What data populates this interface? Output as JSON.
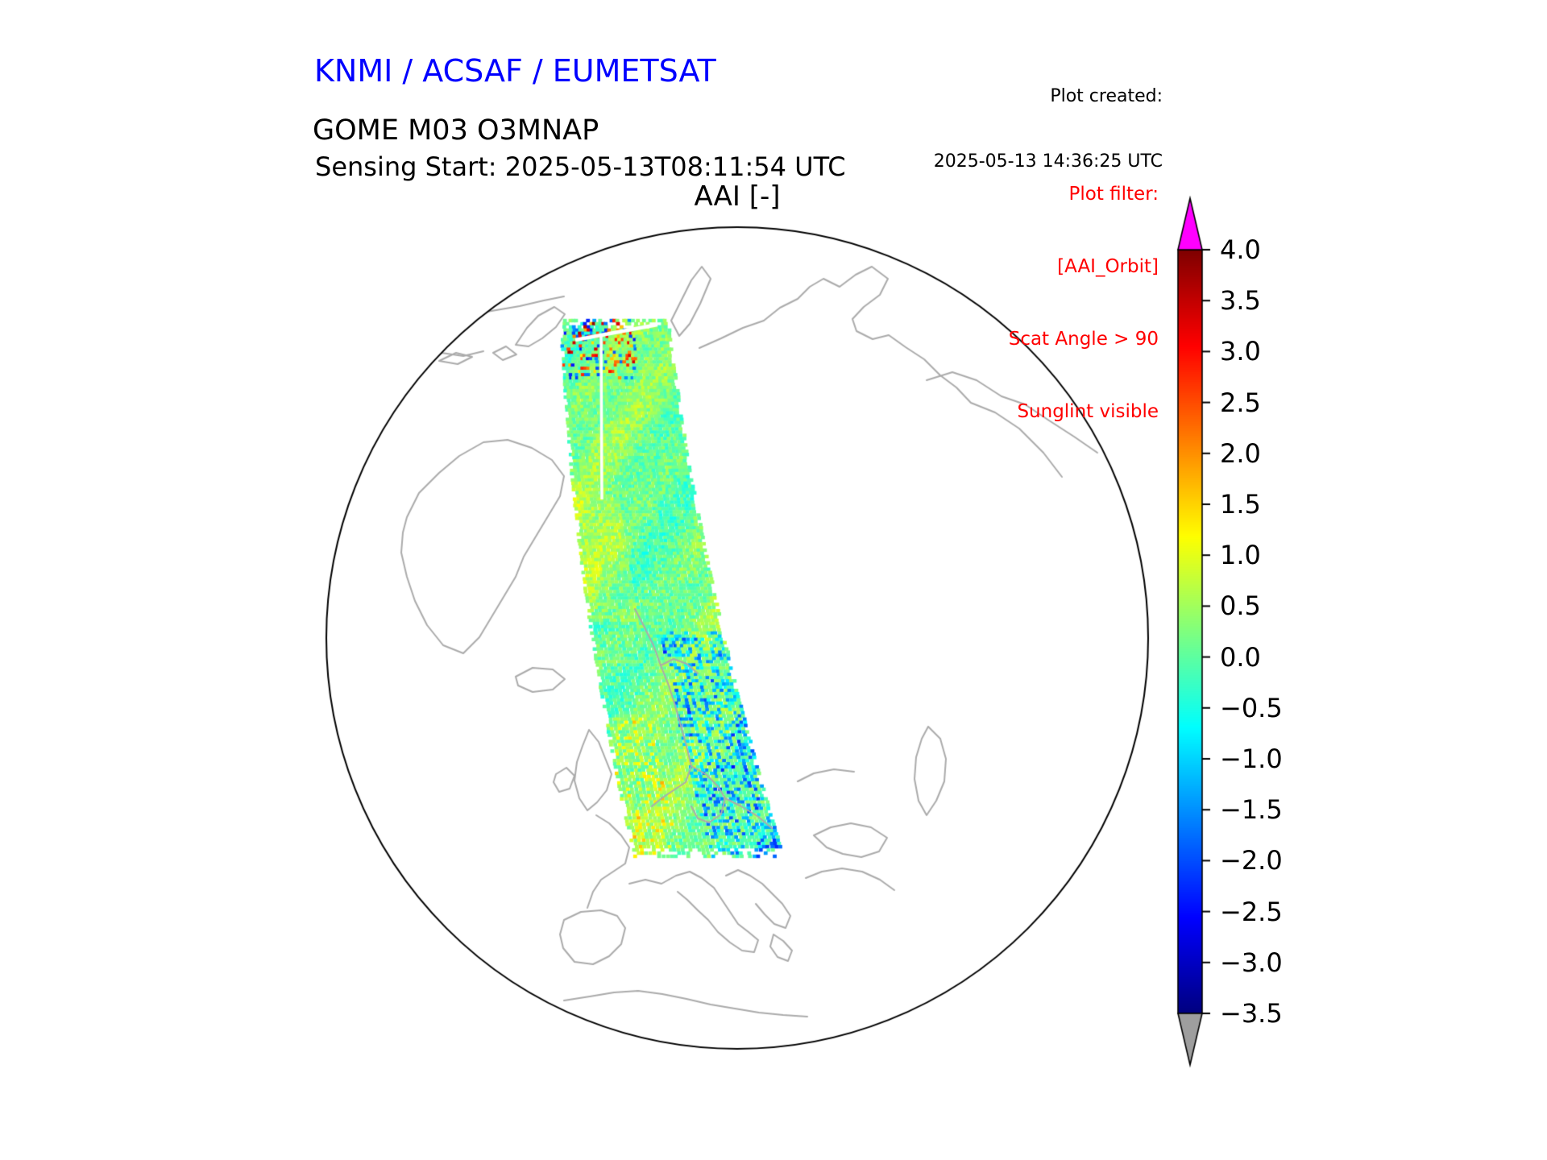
{
  "header": {
    "agency_title": "KNMI / ACSAF / EUMETSAT",
    "plot_created_label": "Plot created:",
    "plot_created_value": "2025-05-13 14:36:25 UTC",
    "product_title": "GOME M03 O3MNAP",
    "sensing_start": "Sensing Start: 2025-05-13T08:11:54 UTC"
  },
  "filter": {
    "title": "Plot filter:",
    "lines": [
      "[AAI_Orbit]",
      "Scat Angle > 90",
      "Sunglint visible"
    ]
  },
  "colors": {
    "header_blue": "#0000ff",
    "filter_red": "#ff0000",
    "coastline_gray": "#ababab",
    "globe_outline": "#000000"
  },
  "chart_data": {
    "type": "heatmap",
    "title": "AAI [-]",
    "projection": "north-polar orthographic globe, Europe at bottom, North Pole near center",
    "colormap": "jet",
    "colorbar": {
      "orientation": "vertical",
      "extend": "both",
      "vmin": -3.5,
      "vmax": 4.0,
      "ticks": [
        4.0,
        3.5,
        3.0,
        2.5,
        2.0,
        1.5,
        1.0,
        0.5,
        0.0,
        -0.5,
        -1.0,
        -1.5,
        -2.0,
        -2.5,
        -3.0,
        -3.5
      ],
      "tick_labels": [
        "4.0",
        "3.5",
        "3.0",
        "2.5",
        "2.0",
        "1.5",
        "1.0",
        "0.5",
        "0.0",
        "−0.5",
        "−1.0",
        "−1.5",
        "−2.0",
        "−2.5",
        "−3.0",
        "−3.5"
      ],
      "over_color": "#ff00ff",
      "under_color": "#9e9e9e"
    },
    "series": [
      {
        "name": "AAI orbit swath",
        "description": "Single GOME-2/Metop-C orbit swath of Absorbing Aerosol Index from the Arctic (orbit start, top) down across Scandinavia and eastern Europe to the Mediterranean. Typical values -1.0 to +1.0 (cyan/green/yellow-green); sunglint speckles up to ~3.5 (orange/red) near the orbit start; patches down to ~-2 (blue) over south-eastern Europe; narrow white data gaps near the orbit start."
      }
    ],
    "map": {
      "outline": "circular globe boundary",
      "coastline_color": "#ababab",
      "features_visible": [
        "Canadian Arctic",
        "Svalbard",
        "Severnaya Zemlya",
        "Siberian coast",
        "Greenland",
        "Iceland",
        "Scandinavia",
        "British Isles",
        "France",
        "Iberia",
        "Italy",
        "Balkans",
        "North Africa",
        "Black Sea",
        "Caspian Sea"
      ]
    }
  }
}
